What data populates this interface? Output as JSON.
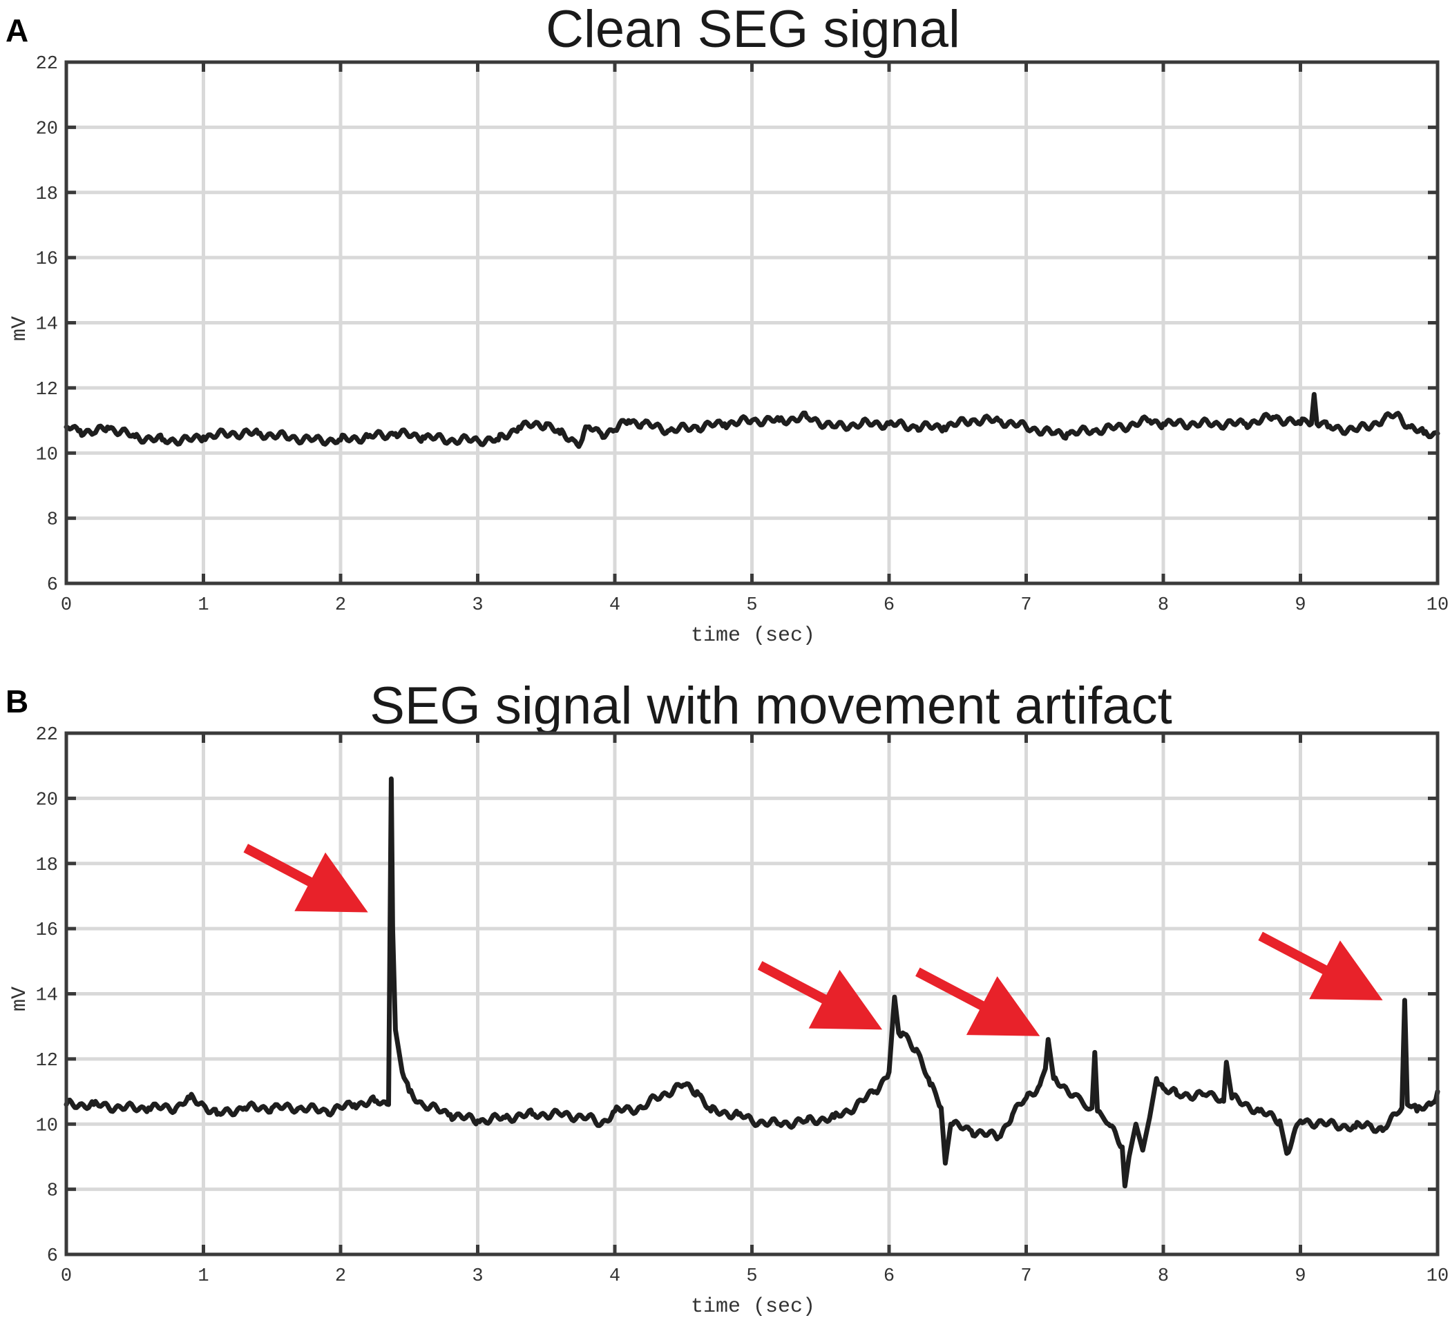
{
  "chart_data": [
    {
      "panel": "A",
      "type": "line",
      "title": "Clean SEG signal",
      "xlabel": "time (sec)",
      "ylabel": "mV",
      "xlim": [
        0,
        10
      ],
      "ylim": [
        6,
        22
      ],
      "xticks": [
        0,
        1,
        2,
        3,
        4,
        5,
        6,
        7,
        8,
        9,
        10
      ],
      "yticks": [
        6,
        8,
        10,
        12,
        14,
        16,
        18,
        20,
        22
      ],
      "grid": true,
      "series": [
        {
          "x": [
            0,
            0.1,
            0.2,
            0.3,
            0.5,
            0.7,
            0.9,
            1.0,
            1.2,
            1.4,
            1.6,
            1.8,
            2.0,
            2.2,
            2.4,
            2.6,
            2.8,
            3.0,
            3.15,
            3.3,
            3.5,
            3.6,
            3.7,
            3.75,
            3.8,
            3.9,
            4.0,
            4.1,
            4.2,
            4.4,
            4.6,
            4.8,
            5.0,
            5.2,
            5.4,
            5.6,
            5.8,
            6.0,
            6.2,
            6.4,
            6.6,
            6.8,
            7.0,
            7.2,
            7.3,
            7.5,
            7.7,
            7.9,
            8.0,
            8.2,
            8.4,
            8.6,
            8.8,
            9.0,
            9.08,
            9.1,
            9.12,
            9.2,
            9.4,
            9.6,
            9.7,
            9.8,
            9.9,
            10.0
          ],
          "y": [
            10.8,
            10.7,
            10.6,
            10.8,
            10.5,
            10.4,
            10.4,
            10.5,
            10.6,
            10.6,
            10.5,
            10.4,
            10.4,
            10.5,
            10.6,
            10.5,
            10.4,
            10.4,
            10.4,
            10.8,
            10.9,
            10.6,
            10.4,
            10.3,
            10.8,
            10.6,
            10.7,
            11.0,
            10.9,
            10.7,
            10.8,
            10.9,
            11.0,
            11.0,
            11.1,
            10.8,
            10.9,
            10.9,
            10.8,
            10.8,
            11.0,
            11.0,
            10.8,
            10.6,
            10.6,
            10.7,
            10.8,
            11.0,
            10.9,
            10.9,
            10.9,
            10.9,
            11.1,
            10.9,
            10.9,
            11.8,
            10.9,
            10.8,
            10.7,
            11.0,
            11.2,
            10.8,
            10.6,
            10.6
          ]
        }
      ]
    },
    {
      "panel": "B",
      "type": "line",
      "title": "SEG signal with movement artifact",
      "xlabel": "time (sec)",
      "ylabel": "mV",
      "xlim": [
        0,
        10
      ],
      "ylim": [
        6,
        22
      ],
      "xticks": [
        0,
        1,
        2,
        3,
        4,
        5,
        6,
        7,
        8,
        9,
        10
      ],
      "yticks": [
        6,
        8,
        10,
        12,
        14,
        16,
        18,
        20,
        22
      ],
      "grid": true,
      "series": [
        {
          "x": [
            0,
            0.2,
            0.4,
            0.6,
            0.8,
            0.9,
            1.0,
            1.1,
            1.3,
            1.5,
            1.7,
            1.9,
            2.1,
            2.25,
            2.35,
            2.37,
            2.38,
            2.4,
            2.45,
            2.5,
            2.6,
            2.8,
            3.0,
            3.2,
            3.4,
            3.6,
            3.8,
            3.9,
            4.0,
            4.2,
            4.3,
            4.5,
            4.6,
            4.7,
            4.9,
            5.0,
            5.2,
            5.4,
            5.6,
            5.7,
            5.9,
            6.0,
            6.04,
            6.07,
            6.1,
            6.2,
            6.3,
            6.38,
            6.41,
            6.45,
            6.6,
            6.8,
            6.9,
            7.0,
            7.1,
            7.14,
            7.16,
            7.2,
            7.35,
            7.48,
            7.5,
            7.52,
            7.6,
            7.7,
            7.72,
            7.75,
            7.8,
            7.85,
            7.9,
            7.95,
            8.0,
            8.1,
            8.3,
            8.44,
            8.46,
            8.5,
            8.7,
            8.85,
            8.9,
            9.0,
            9.2,
            9.4,
            9.5,
            9.6,
            9.7,
            9.74,
            9.76,
            9.78,
            9.85,
            9.95,
            10.0
          ],
          "y": [
            10.6,
            10.6,
            10.5,
            10.5,
            10.5,
            10.8,
            10.6,
            10.3,
            10.5,
            10.5,
            10.5,
            10.4,
            10.6,
            10.7,
            10.6,
            20.6,
            16.0,
            12.9,
            11.6,
            11.0,
            10.6,
            10.3,
            10.1,
            10.2,
            10.3,
            10.3,
            10.2,
            10.0,
            10.4,
            10.5,
            10.8,
            11.2,
            11.0,
            10.4,
            10.3,
            10.1,
            10.0,
            10.1,
            10.2,
            10.4,
            11.0,
            11.6,
            13.9,
            12.8,
            12.8,
            12.3,
            11.2,
            10.5,
            8.8,
            10.0,
            9.8,
            9.6,
            10.3,
            10.8,
            11.2,
            11.7,
            12.6,
            11.4,
            10.9,
            10.5,
            12.2,
            10.4,
            10.0,
            9.3,
            8.1,
            9.0,
            10.0,
            9.2,
            10.2,
            11.4,
            11.1,
            10.9,
            10.9,
            10.7,
            11.9,
            10.8,
            10.4,
            10.1,
            9.1,
            10.1,
            10.0,
            9.9,
            10.0,
            9.8,
            10.3,
            10.5,
            13.8,
            10.6,
            10.4,
            10.6,
            11.0
          ]
        }
      ],
      "annotations": [
        {
          "type": "arrow",
          "color": "#e8222a",
          "points_to": {
            "x": 2.2,
            "y": 16.5
          }
        },
        {
          "type": "arrow",
          "color": "#e8222a",
          "points_to": {
            "x": 5.95,
            "y": 12.9
          }
        },
        {
          "type": "arrow",
          "color": "#e8222a",
          "points_to": {
            "x": 7.1,
            "y": 12.7
          }
        },
        {
          "type": "arrow",
          "color": "#e8222a",
          "points_to": {
            "x": 9.6,
            "y": 13.8
          }
        }
      ]
    }
  ],
  "panels": [
    {
      "letter": "A",
      "title": "Clean SEG signal",
      "xlabel": "time (sec)",
      "ylabel": "mV"
    },
    {
      "letter": "B",
      "title": "SEG signal with movement artifact",
      "xlabel": "time (sec)",
      "ylabel": "mV"
    }
  ]
}
